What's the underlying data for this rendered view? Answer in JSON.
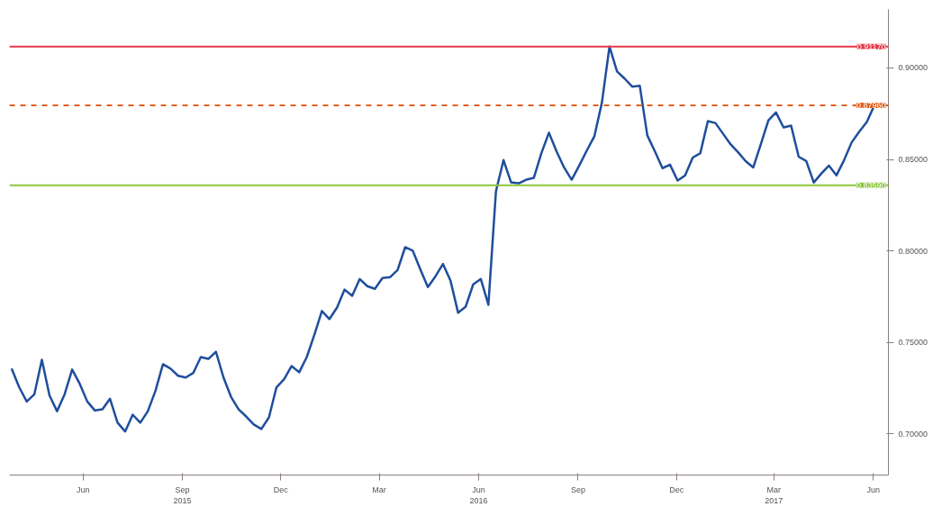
{
  "chart_data": {
    "type": "line",
    "x": [
      "2015-04-10",
      "2015-04-17",
      "2015-04-24",
      "2015-05-01",
      "2015-05-08",
      "2015-05-15",
      "2015-05-22",
      "2015-05-29",
      "2015-06-05",
      "2015-06-12",
      "2015-06-19",
      "2015-06-26",
      "2015-07-03",
      "2015-07-10",
      "2015-07-17",
      "2015-07-24",
      "2015-07-31",
      "2015-08-07",
      "2015-08-14",
      "2015-08-21",
      "2015-08-28",
      "2015-09-04",
      "2015-09-11",
      "2015-09-18",
      "2015-09-25",
      "2015-10-02",
      "2015-10-09",
      "2015-10-16",
      "2015-10-23",
      "2015-10-30",
      "2015-11-06",
      "2015-11-13",
      "2015-11-20",
      "2015-11-27",
      "2015-12-04",
      "2015-12-11",
      "2015-12-18",
      "2015-12-25",
      "2016-01-01",
      "2016-01-08",
      "2016-01-15",
      "2016-01-22",
      "2016-01-29",
      "2016-02-05",
      "2016-02-12",
      "2016-02-19",
      "2016-02-26",
      "2016-03-04",
      "2016-03-11",
      "2016-03-18",
      "2016-03-25",
      "2016-04-01",
      "2016-04-08",
      "2016-04-15",
      "2016-04-22",
      "2016-04-29",
      "2016-05-06",
      "2016-05-13",
      "2016-05-20",
      "2016-05-27",
      "2016-06-03",
      "2016-06-10",
      "2016-06-17",
      "2016-06-24",
      "2016-07-01",
      "2016-07-08",
      "2016-07-15",
      "2016-07-22",
      "2016-07-29",
      "2016-08-05",
      "2016-08-12",
      "2016-08-19",
      "2016-08-26",
      "2016-09-02",
      "2016-09-09",
      "2016-09-16",
      "2016-09-23",
      "2016-09-30",
      "2016-10-07",
      "2016-10-14",
      "2016-10-21",
      "2016-10-28",
      "2016-11-04",
      "2016-11-11",
      "2016-11-18",
      "2016-11-25",
      "2016-12-02",
      "2016-12-09",
      "2016-12-16",
      "2016-12-23",
      "2016-12-30",
      "2017-01-06",
      "2017-01-13",
      "2017-01-20",
      "2017-01-27",
      "2017-02-03",
      "2017-02-10",
      "2017-02-17",
      "2017-02-24",
      "2017-03-03",
      "2017-03-10",
      "2017-03-17",
      "2017-03-24",
      "2017-03-31",
      "2017-04-07",
      "2017-04-14",
      "2017-04-21",
      "2017-04-28",
      "2017-05-05",
      "2017-05-12",
      "2017-05-19",
      "2017-05-26",
      "2017-06-02",
      "2017-06-09",
      "2017-06-16"
    ],
    "series": [
      {
        "color": "#1f4e9c",
        "values": [
          0.7356,
          0.7254,
          0.7176,
          0.7215,
          0.7404,
          0.721,
          0.7123,
          0.7215,
          0.7351,
          0.7273,
          0.7176,
          0.7127,
          0.7133,
          0.7191,
          0.706,
          0.7012,
          0.7104,
          0.706,
          0.7123,
          0.7234,
          0.738,
          0.7356,
          0.7317,
          0.7307,
          0.7332,
          0.7419,
          0.7409,
          0.7448,
          0.7307,
          0.7201,
          0.7133,
          0.7094,
          0.705,
          0.7026,
          0.7089,
          0.7254,
          0.7298,
          0.737,
          0.7336,
          0.7419,
          0.754,
          0.7671,
          0.7627,
          0.769,
          0.7788,
          0.7754,
          0.7846,
          0.7807,
          0.7792,
          0.7851,
          0.7856,
          0.7895,
          0.802,
          0.8001,
          0.7899,
          0.7802,
          0.786,
          0.7928,
          0.7836,
          0.7661,
          0.7695,
          0.7817,
          0.7846,
          0.7705,
          0.8326,
          0.8496,
          0.8374,
          0.8369,
          0.8389,
          0.8399,
          0.8534,
          0.8646,
          0.8544,
          0.8456,
          0.8389,
          0.8466,
          0.8548,
          0.8626,
          0.8811,
          0.9117,
          0.8981,
          0.8942,
          0.8898,
          0.8903,
          0.8631,
          0.8544,
          0.8452,
          0.8471,
          0.8384,
          0.8413,
          0.851,
          0.8534,
          0.8709,
          0.8699,
          0.8641,
          0.8583,
          0.8539,
          0.849,
          0.8456,
          0.8583,
          0.8714,
          0.8757,
          0.8675,
          0.8685,
          0.8515,
          0.8491,
          0.8374,
          0.8423,
          0.8466,
          0.8413,
          0.8496,
          0.8593,
          0.8651,
          0.8704,
          0.8796
        ]
      }
    ],
    "xlim": [
      "2015-04-08",
      "2017-06-29"
    ],
    "xticks": [
      {
        "value": "2015-06-15",
        "label": "Jun"
      },
      {
        "value": "2015-09-15",
        "label": "Sep\n2015"
      },
      {
        "value": "2015-12-15",
        "label": "Dec"
      },
      {
        "value": "2016-03-15",
        "label": "Mar"
      },
      {
        "value": "2016-06-15",
        "label": "Jun\n2016"
      },
      {
        "value": "2016-09-15",
        "label": "Sep"
      },
      {
        "value": "2016-12-15",
        "label": "Dec"
      },
      {
        "value": "2017-03-15",
        "label": "Mar\n2017"
      },
      {
        "value": "2017-06-15",
        "label": "Jun"
      }
    ],
    "ylim": [
      0.6774,
      0.932
    ],
    "yticks": [
      {
        "value": 0.7,
        "label": "0.70000"
      },
      {
        "value": 0.75,
        "label": "0.75000"
      },
      {
        "value": 0.8,
        "label": "0.80000"
      },
      {
        "value": 0.85,
        "label": "0.85000"
      },
      {
        "value": 0.9,
        "label": "0.90000"
      }
    ],
    "ref_lines": [
      {
        "axis": "y",
        "value": 0.9117,
        "label": "0.91170",
        "color": "#e8394a"
      },
      {
        "axis": "y",
        "value": 0.8796,
        "label": "0.87960",
        "color": "#e0601e",
        "line_style": "dashed"
      },
      {
        "axis": "y",
        "value": 0.8359,
        "label": "0.83590",
        "color": "#8cc63f"
      }
    ],
    "grid": false,
    "marker": "none",
    "line_style": "solid"
  }
}
